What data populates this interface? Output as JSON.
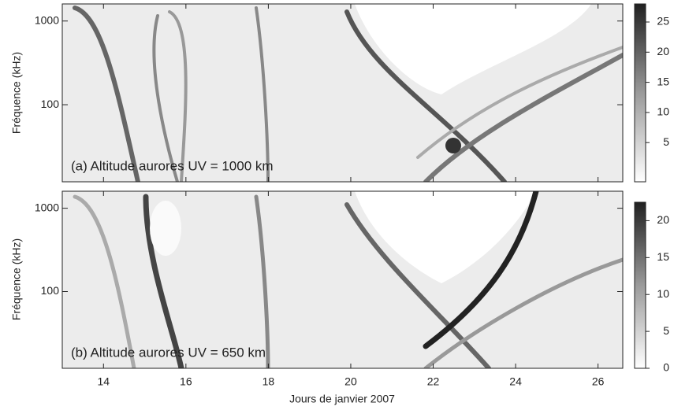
{
  "chart_data": [
    {
      "type": "heatmap",
      "annotation": "(a) Altitude aurores UV  = 1000 km",
      "ylabel": "Fréquence (kHz)",
      "xlim": [
        13,
        26.6
      ],
      "xticks": [
        14,
        16,
        18,
        20,
        22,
        24,
        26
      ],
      "ylim": [
        12,
        1600
      ],
      "yticks": [
        100,
        1000
      ],
      "yscale": "log",
      "colorbar": {
        "lim": [
          -1.5,
          28
        ],
        "ticks": [
          5,
          10,
          15,
          20,
          25
        ]
      }
    },
    {
      "type": "heatmap",
      "annotation": "(b) Altitude aurores UV  = 650 km",
      "ylabel": "Fréquence (kHz)",
      "xlabel": "Jours de janvier 2007",
      "xlim": [
        13,
        26.6
      ],
      "xticks": [
        14,
        16,
        18,
        20,
        22,
        24,
        26
      ],
      "ylim": [
        12,
        1600
      ],
      "yticks": [
        100,
        1000
      ],
      "yscale": "log",
      "colorbar": {
        "lim": [
          0,
          22.5
        ],
        "ticks": [
          0,
          5,
          10,
          15,
          20
        ]
      }
    }
  ]
}
